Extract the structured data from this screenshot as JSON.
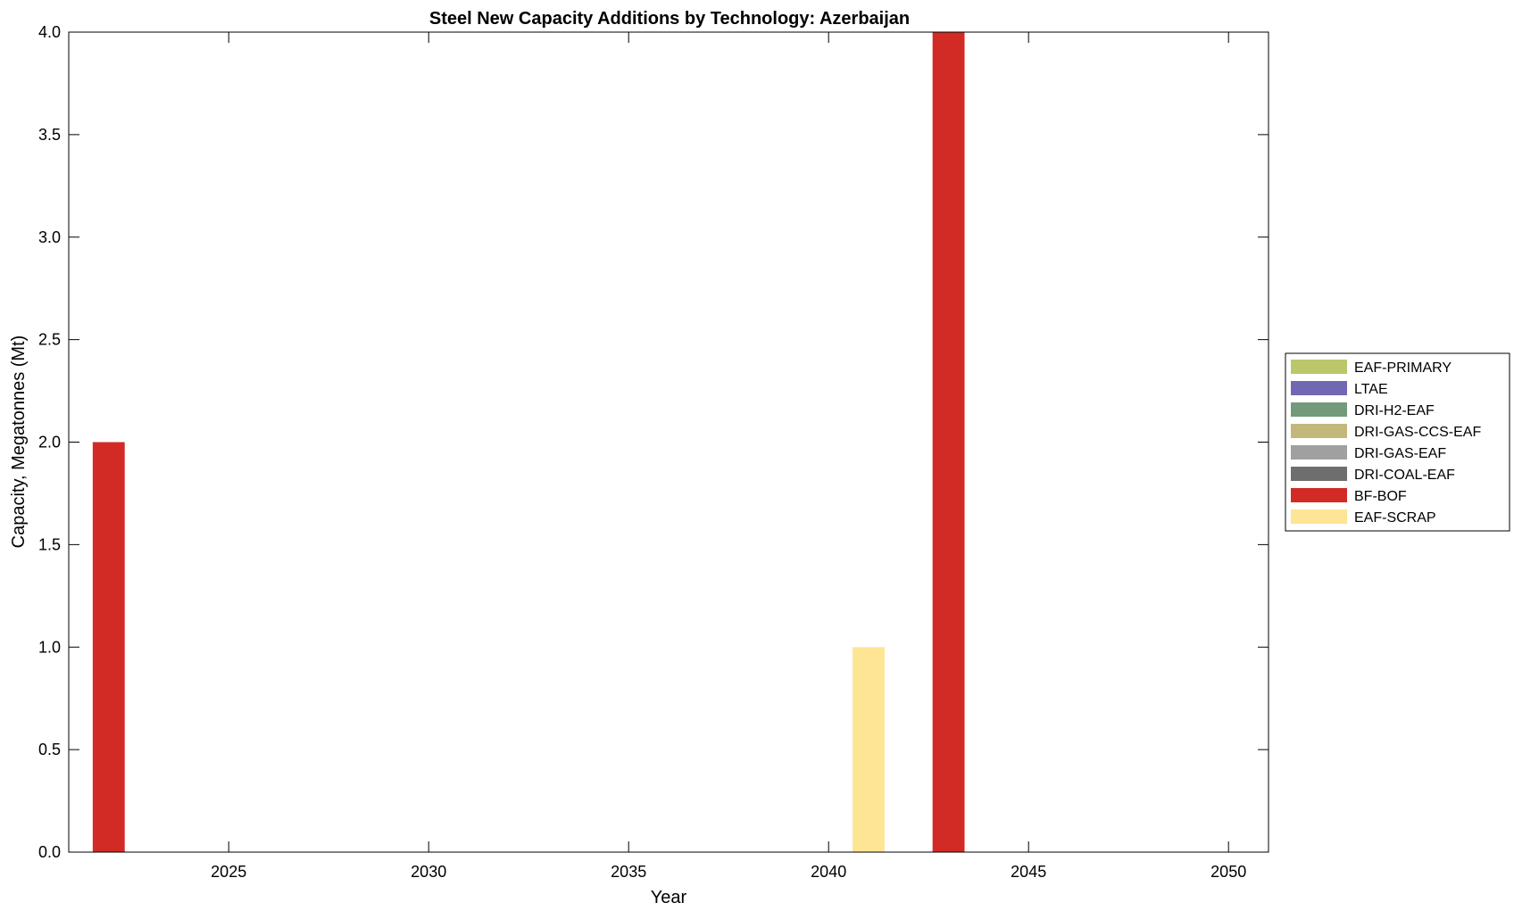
{
  "chart_data": {
    "type": "bar",
    "title": "Steel New Capacity Additions by Technology: Azerbaijan",
    "xlabel": "Year",
    "ylabel": "Capacity, Megatonnes (Mt)",
    "xlim": [
      2021,
      2051
    ],
    "ylim": [
      0,
      4
    ],
    "xticks": [
      2025,
      2030,
      2035,
      2040,
      2045,
      2050
    ],
    "yticks": [
      "0.0",
      "0.5",
      "1.0",
      "1.5",
      "2.0",
      "2.5",
      "3.0",
      "3.5",
      "4.0"
    ],
    "grid": false,
    "legend_position": "right",
    "series": [
      {
        "name": "EAF-PRIMARY",
        "color": "#bcc66b",
        "points": []
      },
      {
        "name": "LTAE",
        "color": "#7168b3",
        "points": []
      },
      {
        "name": "DRI-H2-EAF",
        "color": "#729a7b",
        "points": []
      },
      {
        "name": "DRI-GAS-CCS-EAF",
        "color": "#c2b87e",
        "points": []
      },
      {
        "name": "DRI-GAS-EAF",
        "color": "#a0a0a0",
        "points": []
      },
      {
        "name": "DRI-COAL-EAF",
        "color": "#6e6e6e",
        "points": []
      },
      {
        "name": "BF-BOF",
        "color": "#d22b25",
        "points": [
          {
            "x": 2022,
            "y": 2.0
          },
          {
            "x": 2043,
            "y": 4.0
          }
        ]
      },
      {
        "name": "EAF-SCRAP",
        "color": "#fde595",
        "points": [
          {
            "x": 2041,
            "y": 1.0
          }
        ]
      }
    ]
  }
}
